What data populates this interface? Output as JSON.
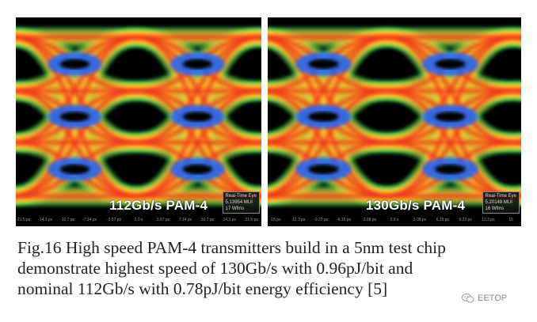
{
  "figure": {
    "panels": [
      {
        "label": "112Gb/s PAM-4",
        "scope": {
          "line1": "Real-Time Eye",
          "line2": "5.13954 MUI",
          "line3": "17 Wfms"
        },
        "ticks": [
          "-21.5 ps",
          "-14.3 ps",
          "-10.7 ps",
          "-7.14 ps",
          "-3.57 ps",
          "0.0 s",
          "3.57 ps",
          "7.14 ps",
          "10.7 ps",
          "14.3 ps",
          "21.5 ps"
        ]
      },
      {
        "label": "130Gb/s PAM-4",
        "scope": {
          "line1": "Real-Time Eye",
          "line2": "5.20148 MUI",
          "line3": "16 Wfms"
        },
        "ticks": [
          "-15 ps",
          "-12.3 ps",
          "-9.23 ps",
          "-6.15 ps",
          "-3.08 ps",
          "0.0 s",
          "3.08 ps",
          "6.15 ps",
          "9.23 ps",
          "12.3 ps",
          "15"
        ]
      }
    ],
    "caption": [
      "Fig.16 High speed PAM-4 transmitters build in a 5nm test chip",
      "demonstrate highest speed of 130Gb/s with 0.96pJ/bit and",
      "nominal 112Gb/s with 0.78pJ/bit energy efficiency [5]"
    ],
    "watermark": "EETOP",
    "colors": {
      "background": "#000000",
      "eye_hot": "#e8331e",
      "eye_warm": "#ffd23c",
      "eye_cool": "#1a66ff",
      "eye_edge": "#3ec850"
    }
  }
}
